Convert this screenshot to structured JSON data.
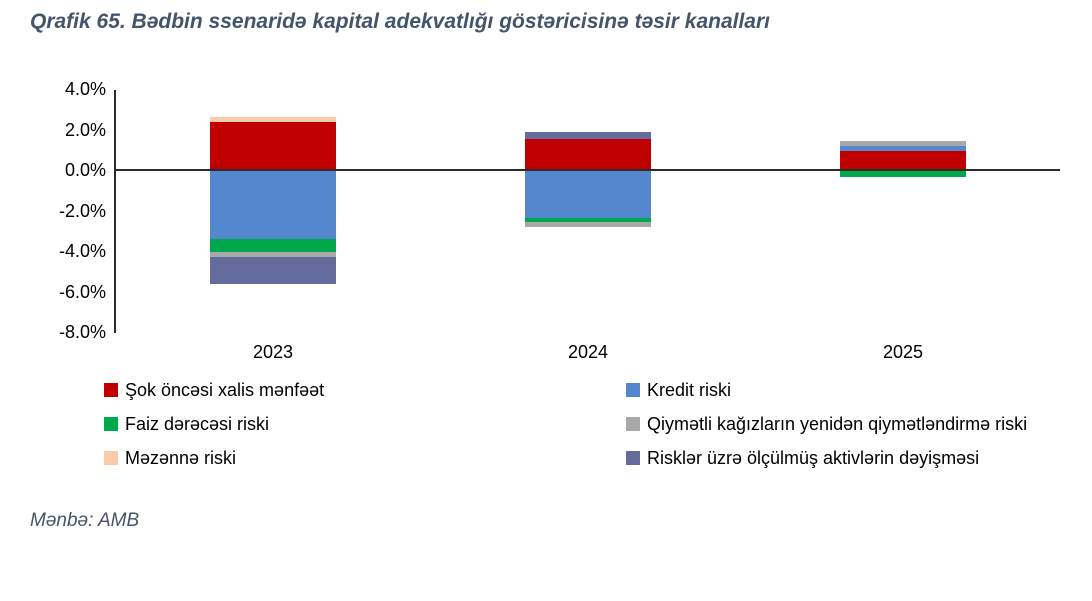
{
  "title": "Qrafik 65. Bədbin ssenaridə kapital adekvatlığı göstəricisinə təsir kanalları",
  "source": "Mənbə: AMB",
  "colors": {
    "title_text": "#44546a",
    "source_text": "#44546a",
    "axis_line": "#2b2b2b",
    "tick_text": "#000000",
    "legend_text": "#000000",
    "background": "#ffffff"
  },
  "chart_data": {
    "type": "bar",
    "stacked": true,
    "grid": false,
    "categories": [
      "2023",
      "2024",
      "2025"
    ],
    "series": [
      {
        "name": "Şok öncəsi xalis mənfəət",
        "color": "#c00000",
        "values": [
          2.35,
          1.55,
          0.95
        ]
      },
      {
        "name": "Kredit riski",
        "color": "#5587ce",
        "values": [
          -3.4,
          -2.35,
          0.25
        ]
      },
      {
        "name": "Faiz dərəcəsi riski",
        "color": "#00a74d",
        "values": [
          -0.65,
          -0.2,
          -0.35
        ]
      },
      {
        "name": "Qiymətli kağızların yenidən qiymətləndirmə riski",
        "color": "#a8a8a8",
        "values": [
          -0.25,
          -0.25,
          0.25
        ]
      },
      {
        "name": "Məzənnə riski",
        "color": "#f8cbaa",
        "values": [
          0.25,
          0,
          0
        ]
      },
      {
        "name": "Risklər üzrə ölçülmüş aktivlərin dəyişməsi",
        "color": "#666b9e",
        "values": [
          -1.35,
          0.35,
          0
        ]
      }
    ],
    "y_axis": {
      "min": -8,
      "max": 4,
      "tick_step": 2,
      "format": "percent",
      "ticks": [
        {
          "label": "4.0%",
          "value": 4
        },
        {
          "label": "2.0%",
          "value": 2
        },
        {
          "label": "0.0%",
          "value": 0
        },
        {
          "label": "-2.0%",
          "value": -2
        },
        {
          "label": "-4.0%",
          "value": -4
        },
        {
          "label": "-6.0%",
          "value": -6
        },
        {
          "label": "-8.0%",
          "value": -8
        }
      ]
    },
    "legend_position": "bottom",
    "legend_columns": [
      [
        "Şok öncəsi xalis mənfəət",
        "Faiz dərəcəsi riski",
        "Məzənnə riski"
      ],
      [
        "Kredit riski",
        "Qiymətli kağızların yenidən qiymətləndirmə riski",
        "Risklər üzrə ölçülmüş aktivlərin dəyişməsi"
      ]
    ]
  }
}
